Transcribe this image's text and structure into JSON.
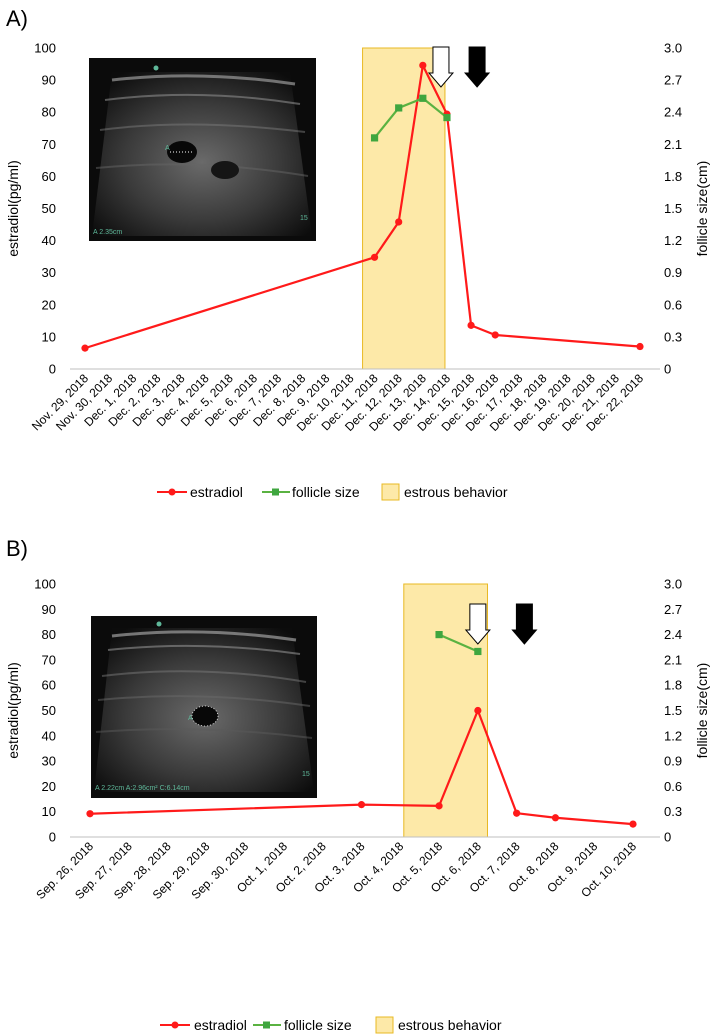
{
  "colors": {
    "estradiol": "#ff1a1a",
    "follicle": "#5ab241",
    "follicle_marker": "#3fa63f",
    "estrous_fill": "#fde9a8",
    "estrous_border": "#e8b923",
    "arrow_open": "#ffffff",
    "arrow_solid": "#000000"
  },
  "chart_data": [
    {
      "type": "line",
      "panel_label": "A)",
      "ylabel": "estradiol(pg/ml)",
      "y2label": "follicle size(cm)",
      "ylim": [
        0,
        100
      ],
      "y2lim": [
        0,
        3.0
      ],
      "yticks": [
        "0",
        "10",
        "20",
        "30",
        "40",
        "50",
        "60",
        "70",
        "80",
        "90",
        "100"
      ],
      "y2ticks": [
        "0",
        "0.3",
        "0.6",
        "0.9",
        "1.2",
        "1.5",
        "1.8",
        "2.1",
        "2.4",
        "2.7",
        "3.0"
      ],
      "categories": [
        "Nov. 29, 2018",
        "Nov. 30, 2018",
        "Dec. 1, 2018",
        "Dec. 2, 2018",
        "Dec. 3, 2018",
        "Dec. 4, 2018",
        "Dec. 5, 2018",
        "Dec. 6, 2018",
        "Dec. 7, 2018",
        "Dec. 8, 2018",
        "Dec. 9, 2018",
        "Dec. 10, 2018",
        "Dec. 11, 2018",
        "Dec. 12, 2018",
        "Dec. 13, 2018",
        "Dec. 14, 2018",
        "Dec. 15, 2018",
        "Dec. 16, 2018",
        "Dec. 17, 2018",
        "Dec. 18, 2018",
        "Dec. 19, 2018",
        "Dec. 20, 2018",
        "Dec. 21, 2018",
        "Dec. 22, 2018"
      ],
      "series": [
        {
          "name": "estradiol",
          "axis": "left",
          "points": [
            [
              0,
              6.5
            ],
            [
              12,
              34.8
            ],
            [
              13,
              45.8
            ],
            [
              14,
              94.6
            ],
            [
              15,
              79.4
            ],
            [
              16,
              13.6
            ],
            [
              17,
              10.6
            ],
            [
              23,
              7.0
            ]
          ]
        },
        {
          "name": "follicle size",
          "axis": "right",
          "points": [
            [
              12,
              2.16
            ],
            [
              13,
              2.44
            ],
            [
              14,
              2.53
            ],
            [
              15,
              2.35
            ]
          ]
        }
      ],
      "estrous_span": [
        12,
        15
      ],
      "arrows": [
        {
          "style": "open",
          "x": 15
        },
        {
          "style": "solid",
          "x": 16
        }
      ],
      "ultrasound": {
        "label": "A  2.35cm",
        "marker": "A",
        "scale": "15"
      },
      "legend": [
        "estradiol",
        "follicle size",
        "estrous behavior"
      ]
    },
    {
      "type": "line",
      "panel_label": "B)",
      "ylabel": "estradiol(pg/ml)",
      "y2label": "follicle size(cm)",
      "ylim": [
        0,
        100
      ],
      "y2lim": [
        0,
        3.0
      ],
      "yticks": [
        "0",
        "10",
        "20",
        "30",
        "40",
        "50",
        "60",
        "70",
        "80",
        "90",
        "100"
      ],
      "y2ticks": [
        "0",
        "0.3",
        "0.6",
        "0.9",
        "1.2",
        "1.5",
        "1.8",
        "2.1",
        "2.4",
        "2.7",
        "3.0"
      ],
      "categories": [
        "Sep. 26, 2018",
        "Sep. 27, 2018",
        "Sep. 28, 2018",
        "Sep. 29, 2018",
        "Sep. 30, 2018",
        "Oct. 1, 2018",
        "Oct. 2, 2018",
        "Oct. 3, 2018",
        "Oct. 4, 2018",
        "Oct. 5, 2018",
        "Oct. 6, 2018",
        "Oct. 7, 2018",
        "Oct. 8, 2018",
        "Oct. 9, 2018",
        "Oct. 10, 2018"
      ],
      "series": [
        {
          "name": "estradiol",
          "axis": "left",
          "points": [
            [
              0,
              9.2
            ],
            [
              7,
              12.8
            ],
            [
              9,
              12.3
            ],
            [
              10,
              50.0
            ],
            [
              11,
              9.4
            ],
            [
              12,
              7.6
            ],
            [
              14,
              5.1
            ]
          ]
        },
        {
          "name": "follicle size",
          "axis": "right",
          "points": [
            [
              9,
              2.4
            ],
            [
              10,
              2.2
            ]
          ]
        }
      ],
      "estrous_span": [
        8.4,
        10.3
      ],
      "arrows": [
        {
          "style": "open",
          "x": 10
        },
        {
          "style": "solid",
          "x": 11.2
        }
      ],
      "ultrasound": {
        "label": "A  2.22cm A:2.96cm² C:6.14cm",
        "marker": "A",
        "scale": "15"
      },
      "legend": [
        "estradiol",
        "follicle size",
        "estrous behavior"
      ]
    }
  ]
}
